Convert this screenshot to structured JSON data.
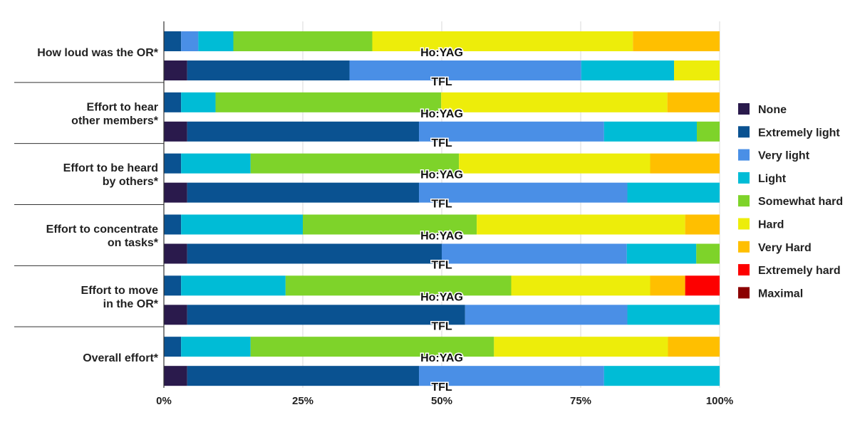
{
  "chart_data": {
    "type": "bar",
    "orientation": "horizontal",
    "stacked": true,
    "normalized": true,
    "title": "",
    "xlabel": "",
    "ylabel": "",
    "xlim": [
      0,
      100
    ],
    "x_ticks": [
      "0%",
      "25%",
      "50%",
      "75%",
      "100%"
    ],
    "grid": true,
    "legend_position": "right",
    "bar_labels": [
      "Ho:YAG",
      "TFL"
    ],
    "groups": [
      "How loud was the OR*",
      "Effort to hear\nother members*",
      "Effort to be heard\nby others*",
      "Effort to concentrate\non tasks*",
      "Effort to move\nin the OR*",
      "Overall effort*"
    ],
    "series": [
      {
        "name": "None",
        "color": "#2a1a4c"
      },
      {
        "name": "Extremely light",
        "color": "#0a5291"
      },
      {
        "name": "Very light",
        "color": "#4a8fe6"
      },
      {
        "name": "Light",
        "color": "#00bcd6"
      },
      {
        "name": "Somewhat hard",
        "color": "#7ed32a"
      },
      {
        "name": "Hard",
        "color": "#eded0a"
      },
      {
        "name": "Very Hard",
        "color": "#ffbf00"
      },
      {
        "name": "Extremely hard",
        "color": "#fd0000"
      },
      {
        "name": "Maximal",
        "color": "#8b0000"
      }
    ],
    "values": [
      {
        "Ho:YAG": [
          0,
          3.1,
          3.1,
          6.3,
          25,
          46.9,
          15.6,
          0,
          0
        ],
        "TFL": [
          4.2,
          29.2,
          41.7,
          16.7,
          0,
          8.2,
          0,
          0,
          0
        ]
      },
      {
        "Ho:YAG": [
          0,
          3.1,
          0,
          6.2,
          40.6,
          40.7,
          9.4,
          0,
          0
        ],
        "TFL": [
          4.2,
          41.7,
          33.3,
          16.7,
          4.1,
          0,
          0,
          0,
          0
        ]
      },
      {
        "Ho:YAG": [
          0,
          3.1,
          0,
          12.5,
          37.5,
          34.4,
          12.5,
          0,
          0
        ],
        "TFL": [
          4.2,
          41.7,
          37.5,
          16.6,
          0,
          0,
          0,
          0,
          0
        ]
      },
      {
        "Ho:YAG": [
          0,
          3.1,
          0,
          21.9,
          31.3,
          37.5,
          6.2,
          0,
          0
        ],
        "TFL": [
          4.2,
          45.8,
          33.3,
          12.5,
          4.2,
          0,
          0,
          0,
          0
        ]
      },
      {
        "Ho:YAG": [
          0,
          3.1,
          0,
          18.8,
          40.6,
          25,
          6.3,
          6.2,
          0
        ],
        "TFL": [
          4.2,
          50,
          29.2,
          16.6,
          0,
          0,
          0,
          0,
          0
        ]
      },
      {
        "Ho:YAG": [
          0,
          3.1,
          0,
          12.5,
          43.8,
          31.3,
          9.3,
          0,
          0
        ],
        "TFL": [
          4.2,
          41.7,
          33.3,
          20.8,
          0,
          0,
          0,
          0,
          0
        ]
      }
    ]
  }
}
